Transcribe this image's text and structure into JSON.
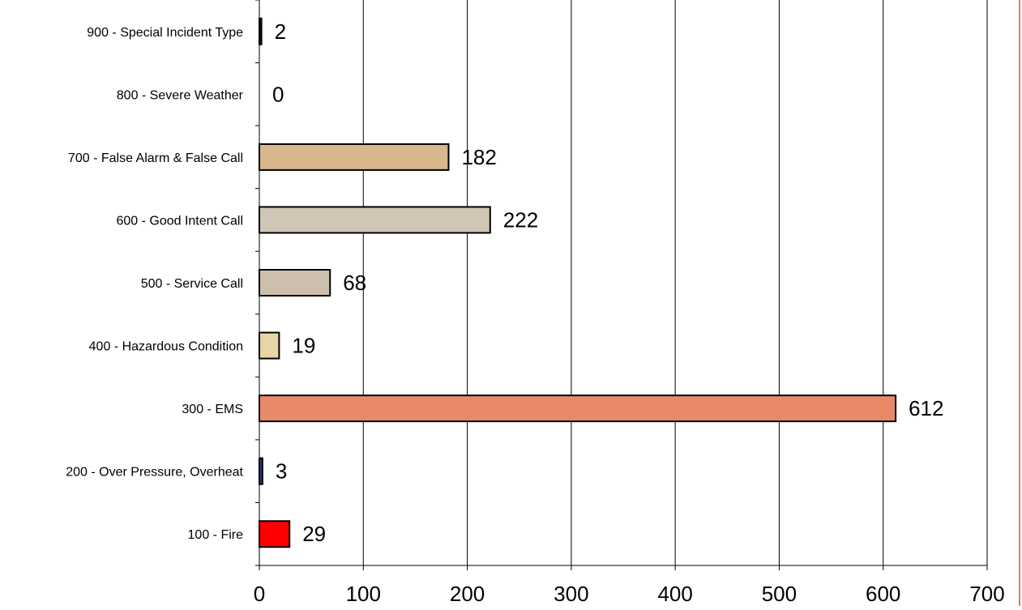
{
  "chart_data": {
    "type": "bar",
    "orientation": "horizontal",
    "categories": [
      "100 - Fire",
      "200 - Over Pressure, Overheat",
      "300 - EMS",
      "400 - Hazardous Condition",
      "500 - Service Call",
      "600 - Good Intent Call",
      "700 - False Alarm & False Call",
      "800 - Severe Weather",
      "900 - Special Incident Type"
    ],
    "values": [
      29,
      3,
      612,
      19,
      68,
      222,
      182,
      0,
      2
    ],
    "value_labels": [
      "29",
      "3",
      "612",
      "19",
      "68",
      "222",
      "182",
      "0",
      "2"
    ],
    "bar_colors": [
      "#ff0000",
      "#2e3a8c",
      "#e88a6a",
      "#e8d5a6",
      "#cdbfae",
      "#d0c6b6",
      "#d8b78c",
      "#d8d8d8",
      "#1a1a1a"
    ],
    "xlim": [
      0,
      700
    ],
    "x_ticks": [
      0,
      100,
      200,
      300,
      400,
      500,
      600,
      700
    ],
    "x_tick_labels": [
      "0",
      "100",
      "200",
      "300",
      "400",
      "500",
      "600",
      "700"
    ],
    "grid": "vertical",
    "legend": "none"
  }
}
